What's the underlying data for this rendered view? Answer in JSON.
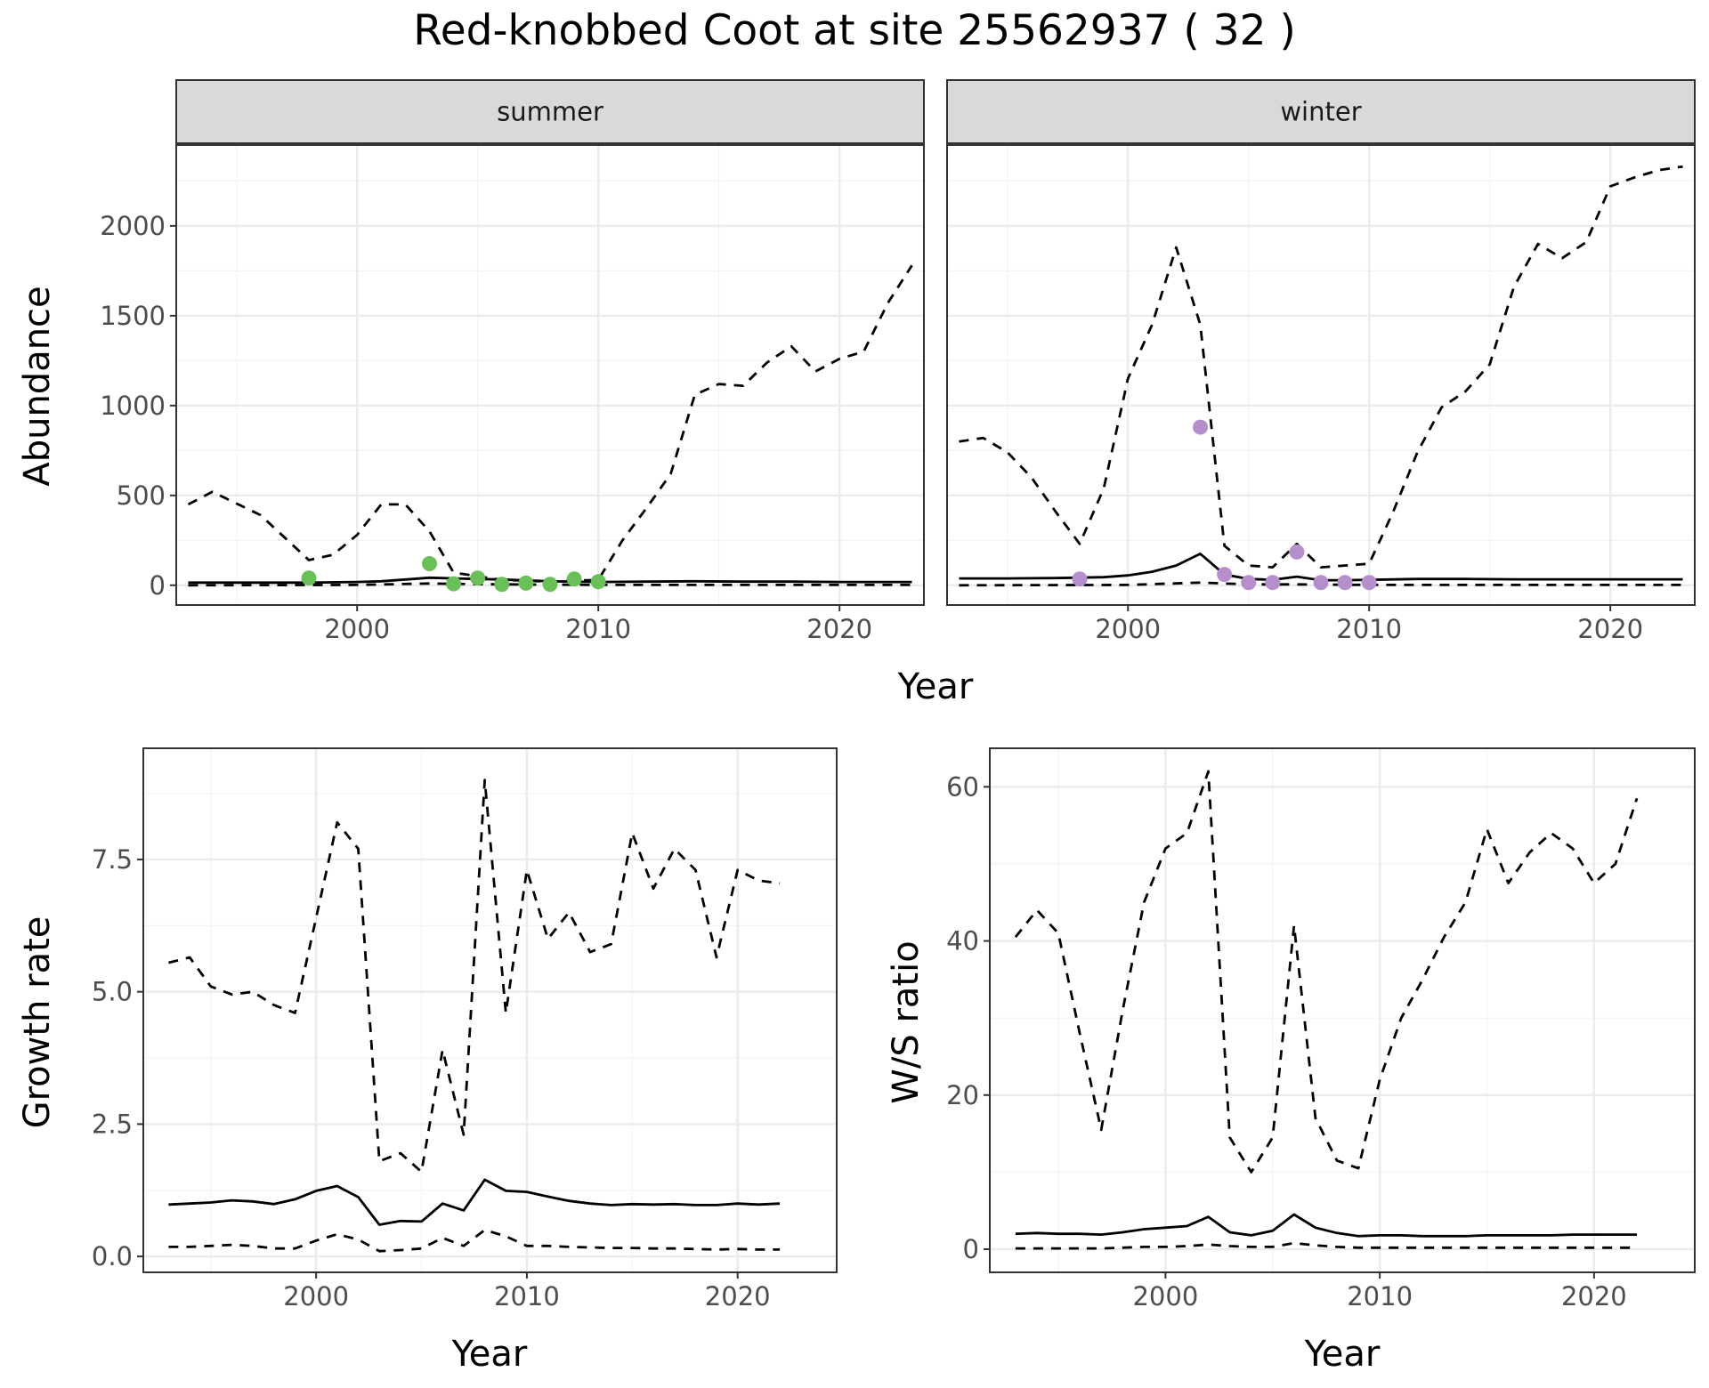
{
  "title": "Red-knobbed Coot at site 25562937 ( 32 )",
  "colors": {
    "summer_points": "#6abf59",
    "winter_points": "#b48fcb",
    "lines": "#000000"
  },
  "chart_data": [
    {
      "type": "line",
      "facet": "summer",
      "xlabel": "Year",
      "ylabel": "Abundance",
      "xlim": [
        1992.5,
        2023.5
      ],
      "ylim": [
        -110,
        2450
      ],
      "xticks": [
        2000,
        2010,
        2020
      ],
      "yticks": [
        0,
        500,
        1000,
        1500,
        2000
      ],
      "series": [
        {
          "style": "solid",
          "x": [
            1993,
            1995,
            1998,
            2000,
            2001,
            2002,
            2003,
            2004,
            2006,
            2008,
            2010,
            2012,
            2014,
            2016,
            2018,
            2020,
            2022,
            2023
          ],
          "y": [
            15,
            15,
            15,
            18,
            22,
            32,
            42,
            38,
            32,
            22,
            18,
            20,
            22,
            20,
            20,
            18,
            18,
            18
          ]
        },
        {
          "style": "dashed",
          "x": [
            1993,
            1994,
            1996,
            1998,
            1999,
            2000,
            2001,
            2002,
            2003,
            2004,
            2006,
            2008,
            2010,
            2011,
            2012,
            2013,
            2014,
            2015,
            2016,
            2017,
            2018,
            2019,
            2020,
            2021,
            2022,
            2023
          ],
          "y": [
            450,
            520,
            390,
            140,
            170,
            280,
            450,
            450,
            300,
            70,
            30,
            20,
            30,
            250,
            430,
            620,
            1060,
            1120,
            1110,
            1240,
            1330,
            1190,
            1260,
            1300,
            1570,
            1780
          ]
        },
        {
          "style": "dashed",
          "x": [
            1993,
            2000,
            2003,
            2005,
            2010,
            2023
          ],
          "y": [
            0,
            2,
            10,
            6,
            2,
            2
          ]
        }
      ],
      "points": {
        "x": [
          1998,
          2003,
          2004,
          2005,
          2006,
          2007,
          2008,
          2009,
          2010
        ],
        "y": [
          40,
          120,
          8,
          40,
          5,
          12,
          5,
          35,
          20
        ]
      }
    },
    {
      "type": "line",
      "facet": "winter",
      "xlabel": "Year",
      "ylabel": "Abundance",
      "xlim": [
        1992.5,
        2023.5
      ],
      "ylim": [
        -110,
        2450
      ],
      "xticks": [
        2000,
        2010,
        2020
      ],
      "yticks": [
        0,
        500,
        1000,
        1500,
        2000
      ],
      "series": [
        {
          "style": "solid",
          "x": [
            1993,
            1995,
            1997,
            1999,
            2000,
            2001,
            2002,
            2003,
            2004,
            2005,
            2006,
            2007,
            2008,
            2009,
            2010,
            2012,
            2014,
            2016,
            2018,
            2020,
            2023
          ],
          "y": [
            38,
            38,
            40,
            45,
            55,
            75,
            110,
            175,
            60,
            35,
            30,
            48,
            28,
            28,
            30,
            35,
            35,
            33,
            33,
            33,
            33
          ]
        },
        {
          "style": "dashed",
          "x": [
            1993,
            1994,
            1995,
            1996,
            1997,
            1998,
            1999,
            2000,
            2001,
            2002,
            2003,
            2004,
            2005,
            2006,
            2007,
            2008,
            2009,
            2010,
            2011,
            2012,
            2013,
            2014,
            2015,
            2016,
            2017,
            2018,
            2019,
            2020,
            2021,
            2022,
            2023
          ],
          "y": [
            800,
            820,
            740,
            600,
            410,
            230,
            540,
            1150,
            1450,
            1880,
            1450,
            220,
            110,
            100,
            230,
            100,
            110,
            120,
            410,
            740,
            990,
            1080,
            1230,
            1660,
            1900,
            1820,
            1910,
            2220,
            2270,
            2310,
            2330
          ]
        },
        {
          "style": "dashed",
          "x": [
            1993,
            2000,
            2003,
            2005,
            2007,
            2010,
            2023
          ],
          "y": [
            0,
            2,
            15,
            5,
            5,
            2,
            2
          ]
        }
      ],
      "points": {
        "x": [
          1998,
          2003,
          2004,
          2005,
          2006,
          2007,
          2008,
          2009,
          2010
        ],
        "y": [
          35,
          880,
          60,
          15,
          15,
          185,
          15,
          15,
          15
        ]
      }
    },
    {
      "type": "line",
      "xlabel": "Year",
      "ylabel": "Growth rate",
      "xlim": [
        1991.8,
        2024.7
      ],
      "ylim": [
        -0.3,
        9.6
      ],
      "xticks": [
        2000,
        2010,
        2020
      ],
      "yticks": [
        0.0,
        2.5,
        5.0,
        7.5
      ],
      "ytick_labels": [
        "0.0",
        "2.5",
        "5.0",
        "7.5"
      ],
      "series": [
        {
          "style": "solid",
          "x": [
            1993,
            1994,
            1995,
            1996,
            1997,
            1998,
            1999,
            2000,
            2001,
            2002,
            2003,
            2004,
            2005,
            2006,
            2007,
            2008,
            2009,
            2010,
            2011,
            2012,
            2013,
            2014,
            2015,
            2016,
            2017,
            2018,
            2019,
            2020,
            2021,
            2022
          ],
          "y": [
            0.98,
            1.0,
            1.02,
            1.06,
            1.04,
            0.99,
            1.08,
            1.24,
            1.33,
            1.12,
            0.6,
            0.67,
            0.66,
            1.0,
            0.87,
            1.45,
            1.24,
            1.22,
            1.13,
            1.05,
            1.0,
            0.97,
            0.99,
            0.98,
            0.99,
            0.97,
            0.97,
            1.0,
            0.98,
            1.0
          ]
        },
        {
          "style": "dashed",
          "x": [
            1993,
            1994,
            1995,
            1996,
            1997,
            1998,
            1999,
            2000,
            2001,
            2002,
            2003,
            2004,
            2005,
            2006,
            2007,
            2008,
            2009,
            2010,
            2011,
            2012,
            2013,
            2014,
            2015,
            2016,
            2017,
            2018,
            2019,
            2020,
            2021,
            2022
          ],
          "y": [
            0.18,
            0.18,
            0.2,
            0.22,
            0.2,
            0.15,
            0.15,
            0.3,
            0.42,
            0.32,
            0.1,
            0.12,
            0.15,
            0.35,
            0.2,
            0.5,
            0.38,
            0.2,
            0.2,
            0.18,
            0.17,
            0.16,
            0.16,
            0.15,
            0.15,
            0.14,
            0.13,
            0.14,
            0.13,
            0.13
          ]
        },
        {
          "style": "dashed",
          "x": [
            1993,
            1994,
            1995,
            1996,
            1997,
            1998,
            1999,
            2000,
            2001,
            2002,
            2003,
            2004,
            2005,
            2006,
            2007,
            2008,
            2009,
            2010,
            2011,
            2012,
            2013,
            2014,
            2015,
            2016,
            2017,
            2018,
            2019,
            2020,
            2021,
            2022
          ],
          "y": [
            5.55,
            5.65,
            5.1,
            4.95,
            5.0,
            4.75,
            4.6,
            6.4,
            8.2,
            7.7,
            1.8,
            1.95,
            1.6,
            3.9,
            2.3,
            9.0,
            4.6,
            7.3,
            6.0,
            6.5,
            5.75,
            5.9,
            8.0,
            6.95,
            7.7,
            7.3,
            5.65,
            7.3,
            7.1,
            7.05
          ]
        }
      ]
    },
    {
      "type": "line",
      "xlabel": "Year",
      "ylabel": "W/S ratio",
      "xlim": [
        1991.8,
        2024.7
      ],
      "ylim": [
        -3,
        65
      ],
      "xticks": [
        2000,
        2010,
        2020
      ],
      "yticks": [
        0,
        20,
        40,
        60
      ],
      "series": [
        {
          "style": "solid",
          "x": [
            1993,
            1994,
            1995,
            1996,
            1997,
            1998,
            1999,
            2000,
            2001,
            2002,
            2003,
            2004,
            2005,
            2006,
            2007,
            2008,
            2009,
            2010,
            2011,
            2012,
            2013,
            2014,
            2015,
            2016,
            2017,
            2018,
            2019,
            2020,
            2021,
            2022
          ],
          "y": [
            2.0,
            2.1,
            2.0,
            2.0,
            1.9,
            2.2,
            2.6,
            2.8,
            3.0,
            4.2,
            2.2,
            1.8,
            2.4,
            4.5,
            2.8,
            2.1,
            1.7,
            1.8,
            1.8,
            1.7,
            1.7,
            1.7,
            1.8,
            1.8,
            1.8,
            1.8,
            1.9,
            1.9,
            1.9,
            1.9
          ]
        },
        {
          "style": "dashed",
          "x": [
            1993,
            1994,
            1995,
            1996,
            1997,
            1998,
            1999,
            2000,
            2001,
            2002,
            2003,
            2004,
            2005,
            2006,
            2007,
            2008,
            2009,
            2010,
            2011,
            2012,
            2013,
            2014,
            2015,
            2016,
            2017,
            2018,
            2019,
            2020,
            2021,
            2022
          ],
          "y": [
            0.1,
            0.1,
            0.1,
            0.1,
            0.1,
            0.2,
            0.3,
            0.3,
            0.4,
            0.6,
            0.4,
            0.3,
            0.3,
            0.8,
            0.5,
            0.3,
            0.2,
            0.2,
            0.2,
            0.2,
            0.2,
            0.2,
            0.2,
            0.2,
            0.2,
            0.2,
            0.2,
            0.2,
            0.2,
            0.2
          ]
        },
        {
          "style": "dashed",
          "x": [
            1993,
            1994,
            1995,
            1996,
            1997,
            1998,
            1999,
            2000,
            2001,
            2002,
            2003,
            2004,
            2005,
            2006,
            2007,
            2008,
            2009,
            2010,
            2011,
            2012,
            2013,
            2014,
            2015,
            2016,
            2017,
            2018,
            2019,
            2020,
            2021,
            2022
          ],
          "y": [
            40.5,
            44.0,
            41.0,
            28.0,
            15.5,
            31.0,
            45.0,
            52.0,
            54.0,
            62.0,
            14.5,
            10.0,
            14.5,
            42.0,
            17.0,
            11.5,
            10.5,
            22.0,
            30.0,
            35.0,
            40.5,
            45.0,
            54.5,
            47.5,
            51.5,
            54.0,
            52.0,
            47.5,
            50.0,
            58.5
          ]
        }
      ]
    }
  ]
}
